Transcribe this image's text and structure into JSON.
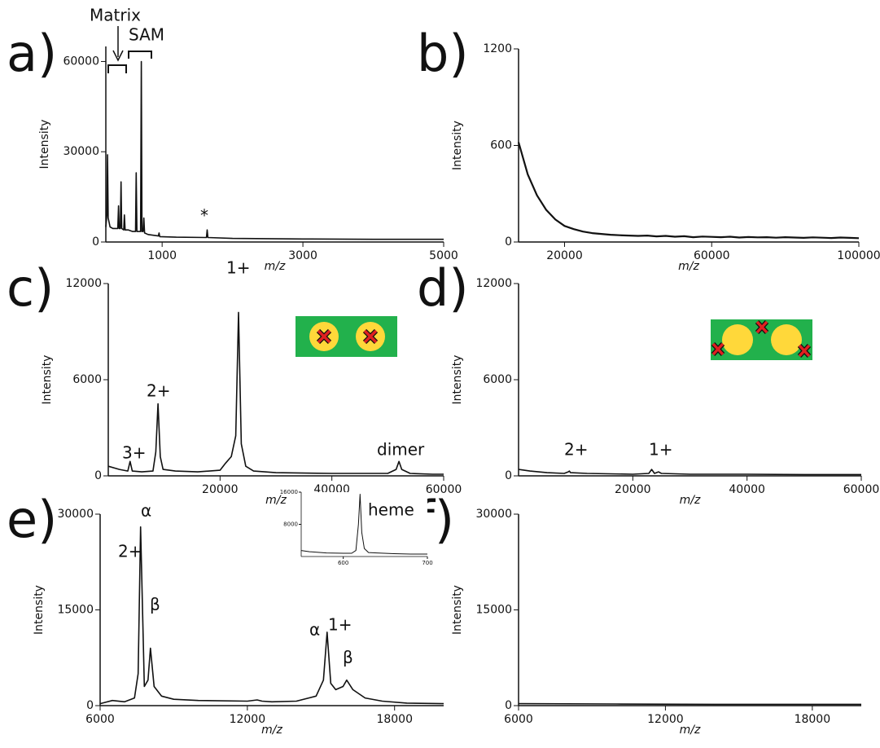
{
  "chart_data": [
    {
      "type": "line",
      "panel_label": "a)",
      "ylabel": "Intensity",
      "xlabel": "m/z",
      "color": "#111111",
      "xlim": [
        200,
        5000
      ],
      "ylim": [
        0,
        65000
      ],
      "xticks": [
        1000,
        3000,
        5000
      ],
      "yticks": [
        0,
        30000,
        60000
      ],
      "annotations": [
        "Matrix",
        "SAM",
        "*"
      ],
      "x": [
        200,
        215,
        224,
        233,
        260,
        300,
        370,
        380,
        390,
        406,
        416,
        426,
        454,
        464,
        474,
        520,
        580,
        622,
        632,
        642,
        694,
        704,
        714,
        730,
        740,
        750,
        800,
        946,
        956,
        966,
        1200,
        1630,
        1640,
        1650,
        2000,
        3000,
        4000,
        5000
      ],
      "values": [
        5000,
        9000,
        29000,
        8000,
        5000,
        4500,
        4500,
        12000,
        4500,
        4500,
        20000,
        4500,
        4000,
        9000,
        4000,
        4000,
        3500,
        3500,
        23000,
        3500,
        3500,
        60000,
        3500,
        3500,
        8000,
        3000,
        2500,
        2000,
        3000,
        1800,
        1600,
        1500,
        4000,
        1500,
        1200,
        1000,
        900,
        900
      ]
    },
    {
      "type": "line",
      "panel_label": "b)",
      "ylabel": "Intensity",
      "xlabel": "m/z",
      "color": "#111111",
      "xlim": [
        7500,
        100000
      ],
      "ylim": [
        0,
        1200
      ],
      "xticks": [
        20000,
        60000,
        100000
      ],
      "yticks": [
        0,
        600,
        1200
      ],
      "x": [
        7500,
        10000,
        12500,
        15000,
        17500,
        20000,
        22500,
        25000,
        27500,
        30000,
        32500,
        35000,
        37500,
        40000,
        42500,
        45000,
        47500,
        50000,
        52500,
        55000,
        57500,
        60000,
        62500,
        65000,
        67500,
        70000,
        72500,
        75000,
        77500,
        80000,
        82500,
        85000,
        87500,
        90000,
        92500,
        95000,
        97500,
        100000
      ],
      "values": [
        620,
        420,
        290,
        200,
        140,
        100,
        80,
        65,
        55,
        50,
        45,
        42,
        40,
        38,
        40,
        35,
        38,
        33,
        36,
        30,
        34,
        32,
        30,
        33,
        28,
        31,
        29,
        30,
        27,
        30,
        28,
        26,
        29,
        27,
        25,
        28,
        26,
        24
      ]
    },
    {
      "type": "line",
      "panel_label": "c)",
      "ylabel": "Intensity",
      "xlabel": "m/z",
      "color": "#111111",
      "xlim": [
        0,
        60000
      ],
      "ylim": [
        0,
        12000
      ],
      "xticks": [
        20000,
        40000,
        60000
      ],
      "yticks": [
        0,
        6000,
        12000
      ],
      "annotations": [
        "3+",
        "2+",
        "1+",
        "dimer"
      ],
      "x": [
        0,
        2000,
        3500,
        3900,
        4300,
        6000,
        8000,
        8500,
        8900,
        9300,
        9800,
        12000,
        16000,
        20000,
        21000,
        22000,
        22800,
        23300,
        23800,
        24600,
        26000,
        30000,
        40000,
        50000,
        51500,
        52000,
        52500,
        54000,
        58000,
        60000
      ],
      "values": [
        600,
        400,
        300,
        900,
        300,
        250,
        300,
        1500,
        4500,
        1200,
        400,
        300,
        250,
        350,
        800,
        1200,
        2500,
        10200,
        2000,
        600,
        300,
        200,
        150,
        150,
        400,
        900,
        400,
        150,
        100,
        100
      ]
    },
    {
      "type": "line",
      "panel_label": "d)",
      "ylabel": "Intensity",
      "xlabel": "m/z",
      "color": "#111111",
      "xlim": [
        0,
        60000
      ],
      "ylim": [
        0,
        12000
      ],
      "xticks": [
        20000,
        40000,
        60000
      ],
      "yticks": [
        0,
        6000,
        12000
      ],
      "annotations": [
        "2+",
        "1+"
      ],
      "x": [
        0,
        2000,
        5000,
        8000,
        8700,
        8900,
        9100,
        12000,
        20000,
        22800,
        23300,
        23800,
        24500,
        25000,
        30000,
        40000,
        50000,
        60000
      ],
      "values": [
        400,
        300,
        200,
        150,
        250,
        300,
        200,
        150,
        100,
        150,
        400,
        150,
        250,
        150,
        100,
        100,
        80,
        80
      ]
    },
    {
      "type": "line",
      "panel_label": "e)",
      "ylabel": "Intensity",
      "xlabel": "m/z",
      "color": "#111111",
      "xlim": [
        6000,
        20000
      ],
      "ylim": [
        0,
        30000
      ],
      "xticks": [
        6000,
        12000,
        18000
      ],
      "yticks": [
        0,
        15000,
        30000
      ],
      "annotations": [
        "α",
        "2+",
        "β",
        "α",
        "1+",
        "β"
      ],
      "x": [
        6000,
        6500,
        7000,
        7400,
        7550,
        7650,
        7800,
        7950,
        8050,
        8200,
        8500,
        9000,
        10000,
        12000,
        12400,
        12600,
        13000,
        14000,
        14800,
        15100,
        15250,
        15400,
        15600,
        15900,
        16050,
        16300,
        16800,
        17500,
        18500,
        20000
      ],
      "values": [
        300,
        800,
        600,
        1200,
        5000,
        28000,
        3000,
        4000,
        9000,
        3000,
        1500,
        1000,
        800,
        700,
        900,
        700,
        600,
        700,
        1500,
        4000,
        11500,
        3500,
        2500,
        3000,
        4000,
        2500,
        1200,
        700,
        400,
        300
      ]
    },
    {
      "type": "line",
      "panel_label": "f)",
      "ylabel": "Intensity",
      "xlabel": "m/z",
      "color": "#111111",
      "xlim": [
        6000,
        20000
      ],
      "ylim": [
        0,
        30000
      ],
      "xticks": [
        6000,
        12000,
        18000
      ],
      "yticks": [
        0,
        15000,
        30000
      ],
      "x": [
        6000,
        10000,
        14000,
        20000
      ],
      "values": [
        300,
        250,
        200,
        200
      ]
    },
    {
      "type": "line",
      "color": "#111111",
      "xlim": [
        550,
        700
      ],
      "ylim": [
        0,
        16000
      ],
      "xticks": [
        600,
        700
      ],
      "yticks": [
        8000,
        16000
      ],
      "annotations": [
        "heme"
      ],
      "x": [
        550,
        560,
        580,
        600,
        610,
        615,
        618,
        620,
        622,
        625,
        630,
        640,
        660,
        680,
        700
      ],
      "values": [
        1500,
        1200,
        900,
        800,
        800,
        1500,
        8000,
        15500,
        6000,
        2000,
        1000,
        900,
        700,
        600,
        600
      ]
    }
  ]
}
